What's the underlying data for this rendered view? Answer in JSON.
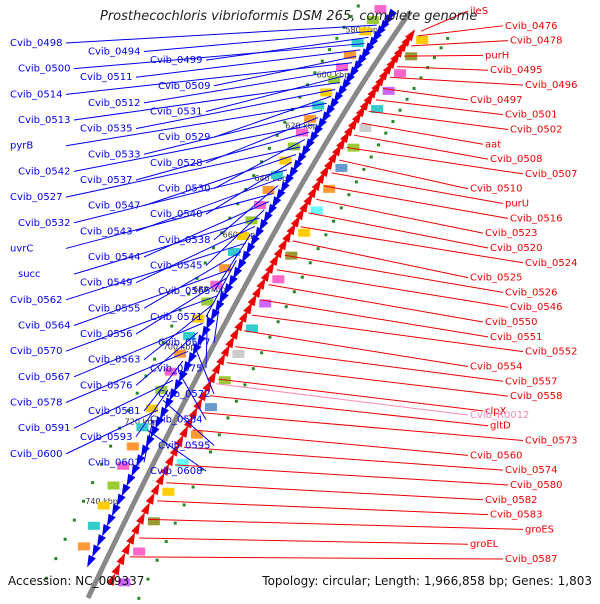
{
  "title": "Prosthecochloris vibrioformis DSM 265, complete genome",
  "footer": {
    "accession_label": "Accession:",
    "accession": "NC_009337",
    "topology_label": "Topology:",
    "topology": "circular;",
    "length_label": "Length:",
    "length": "1,966,858 bp;",
    "genes_label": "Genes:",
    "genes": "1,803"
  },
  "colors": {
    "forward": "#0000ee",
    "reverse": "#ee0000",
    "rna": "#ff88bb",
    "backbone": "#888888",
    "tick": "#228822"
  },
  "ticks": [
    "580 kbp",
    "600 kbp",
    "620 kbp",
    "640 kbp",
    "660 kbp",
    "680 kbp",
    "700 kbp",
    "720 kbp",
    "740 kbp"
  ],
  "forward_labels": [
    "Cvib_0498",
    "Cvib_0494",
    "Cvib_0499",
    "Cvib_0500",
    "Cvib_0511",
    "Cvib_0509",
    "Cvib_0514",
    "Cvib_0512",
    "Cvib_0531",
    "Cvib_0513",
    "Cvib_0535",
    "Cvib_0529",
    "pyrB",
    "Cvib_0533",
    "Cvib_0528",
    "Cvib_0542",
    "Cvib_0537",
    "Cvib_0530",
    "Cvib_0527",
    "Cvib_0547",
    "Cvib_0540",
    "Cvib_0532",
    "Cvib_0543",
    "Cvib_0538",
    "uvrC",
    "Cvib_0544",
    "Cvib_0545",
    "succ",
    "Cvib_0549",
    "Cvib_0565",
    "Cvib_0562",
    "Cvib_0555",
    "Cvib_0571",
    "Cvib_0564",
    "Cvib_0556",
    "Cvib_0577",
    "Cvib_0570",
    "Cvib_0563",
    "Cvib_0575",
    "Cvib_0567",
    "Cvib_0576",
    "Cvib_0572",
    "Cvib_0578",
    "Cvib_0581",
    "Cvib_0584",
    "Cvib_0591",
    "Cvib_0593",
    "Cvib_0595",
    "Cvib_0600",
    "Cvib_0601",
    "Cvib_0608"
  ],
  "reverse_labels": [
    "ileS",
    "Cvib_0476",
    "Cvib_0478",
    "purH",
    "Cvib_0495",
    "Cvib_0496",
    "Cvib_0497",
    "Cvib_0501",
    "Cvib_0502",
    "aat",
    "Cvib_0508",
    "Cvib_0507",
    "Cvib_0510",
    "purU",
    "Cvib_0516",
    "Cvib_0523",
    "Cvib_0520",
    "Cvib_0524",
    "Cvib_0525",
    "Cvib_0526",
    "Cvib_0546",
    "Cvib_0550",
    "Cvib_0551",
    "Cvib_0552",
    "Cvib_0554",
    "Cvib_0557",
    "Cvib_0558",
    "clpX",
    "gltD",
    "Cvib_0573",
    "Cvib_0560",
    "Cvib_0574",
    "Cvib_0580",
    "Cvib_0582",
    "Cvib_0583",
    "groES",
    "groEL",
    "Cvib_0587"
  ],
  "rna_labels": [
    "Cvib_R0012"
  ]
}
